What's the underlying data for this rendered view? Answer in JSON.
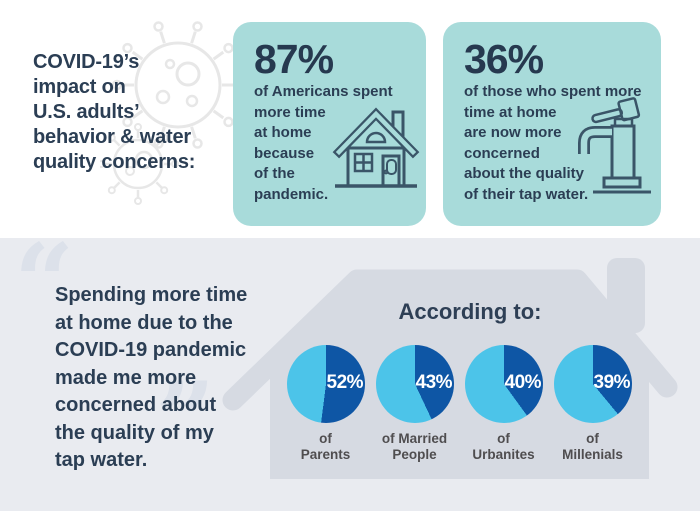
{
  "header": {
    "title_lines": [
      "COVID-19’s",
      "impact on",
      "U.S. adults’",
      "behavior & water",
      "quality concerns:"
    ]
  },
  "stat_cards": [
    {
      "value": "87%",
      "lines": [
        "of Americans spent",
        "more time",
        "at home",
        "because",
        "of the",
        "pandemic."
      ],
      "icon": "house-icon"
    },
    {
      "value": "36%",
      "lines": [
        "of those who spent more",
        "time at home",
        "are now more",
        "concerned",
        "about the quality",
        "of their tap water."
      ],
      "icon": "faucet-icon"
    }
  ],
  "quote": {
    "open_mark": "“",
    "close_mark": "”",
    "lines": [
      "Spending more time",
      "at home due to the",
      "COVID-19 pandemic",
      "made me more",
      "concerned about",
      "the quality of my",
      "tap water."
    ]
  },
  "chart_data": {
    "type": "pie",
    "title": "According to:",
    "legend_position": "none",
    "slice_color": "#0E56A5",
    "remainder_color": "#4CC4E9",
    "charts": [
      {
        "pct_label": "52%",
        "value_pct": 52,
        "label_lines": [
          "of",
          "Parents"
        ]
      },
      {
        "pct_label": "43%",
        "value_pct": 43,
        "label_lines": [
          "of Married",
          "People"
        ]
      },
      {
        "pct_label": "40%",
        "value_pct": 40,
        "label_lines": [
          "of",
          "Urbanites"
        ]
      },
      {
        "pct_label": "39%",
        "value_pct": 39,
        "label_lines": [
          "of",
          "Millenials"
        ]
      }
    ]
  },
  "colors": {
    "card_teal": "#A8DBDA",
    "navy_text": "#2B3E54",
    "bottom_bg": "#E9EBF0",
    "house_silhouette": "#D6DAE2",
    "quote_mark": "#DCE1EA",
    "pie_dark_blue": "#0E56A5",
    "pie_light_blue": "#4CC4E9",
    "pie_label_gray": "#4F4D4F"
  }
}
